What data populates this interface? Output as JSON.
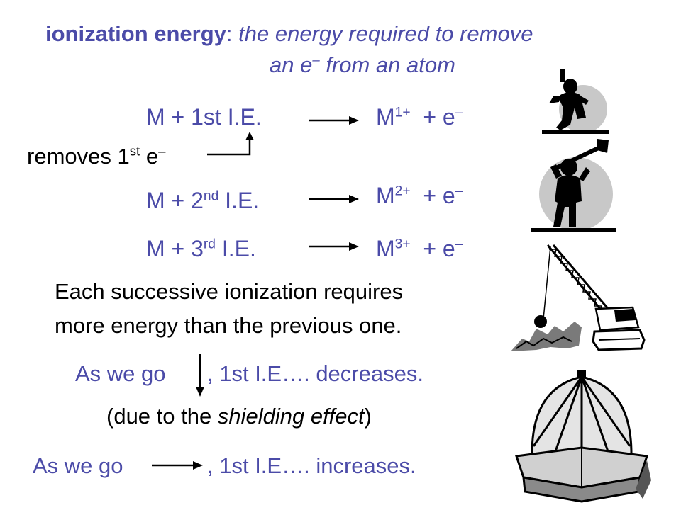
{
  "definition": {
    "term": "ionization energy",
    "colon": ":",
    "line1": " the energy required to remove",
    "line2_pre": "an e",
    "minus": "–",
    "line2_post": " from an atom"
  },
  "equations": [
    {
      "left": "M  +  1st I.E.",
      "sup_left": "",
      "after_sup": "",
      "right": "M",
      "charge": "1+",
      "electron": "+  e",
      "minus": "–"
    },
    {
      "left": "M  +  2",
      "sup_left": "nd",
      "after_sup": " I.E.",
      "right": "M",
      "charge": "2+",
      "electron": "+  e",
      "minus": "–"
    },
    {
      "left": "M  +  3",
      "sup_left": "rd",
      "after_sup": " I.E.",
      "right": "M",
      "charge": "3+",
      "electron": "+  e",
      "minus": "–"
    }
  ],
  "removes": {
    "text": "removes  1",
    "sup": "st",
    "after": " e",
    "minus": "–"
  },
  "successive": {
    "line1": "Each successive ionization requires",
    "line2": "more energy than the previous one."
  },
  "trend_down": {
    "pre": "As we go",
    "post": ", 1st I.E….  decreases."
  },
  "shielding": {
    "pre": "(due to the ",
    "ital": "shielding effect",
    "post": ")"
  },
  "trend_right": {
    "pre": "As we go",
    "post": ", 1st I.E….  increases."
  },
  "colors": {
    "accent": "#4B4BA8",
    "text": "#000000"
  },
  "icons": [
    "person-lifting-icon",
    "person-hammer-icon",
    "wrecking-crane-icon",
    "gazebo-dome-icon"
  ]
}
